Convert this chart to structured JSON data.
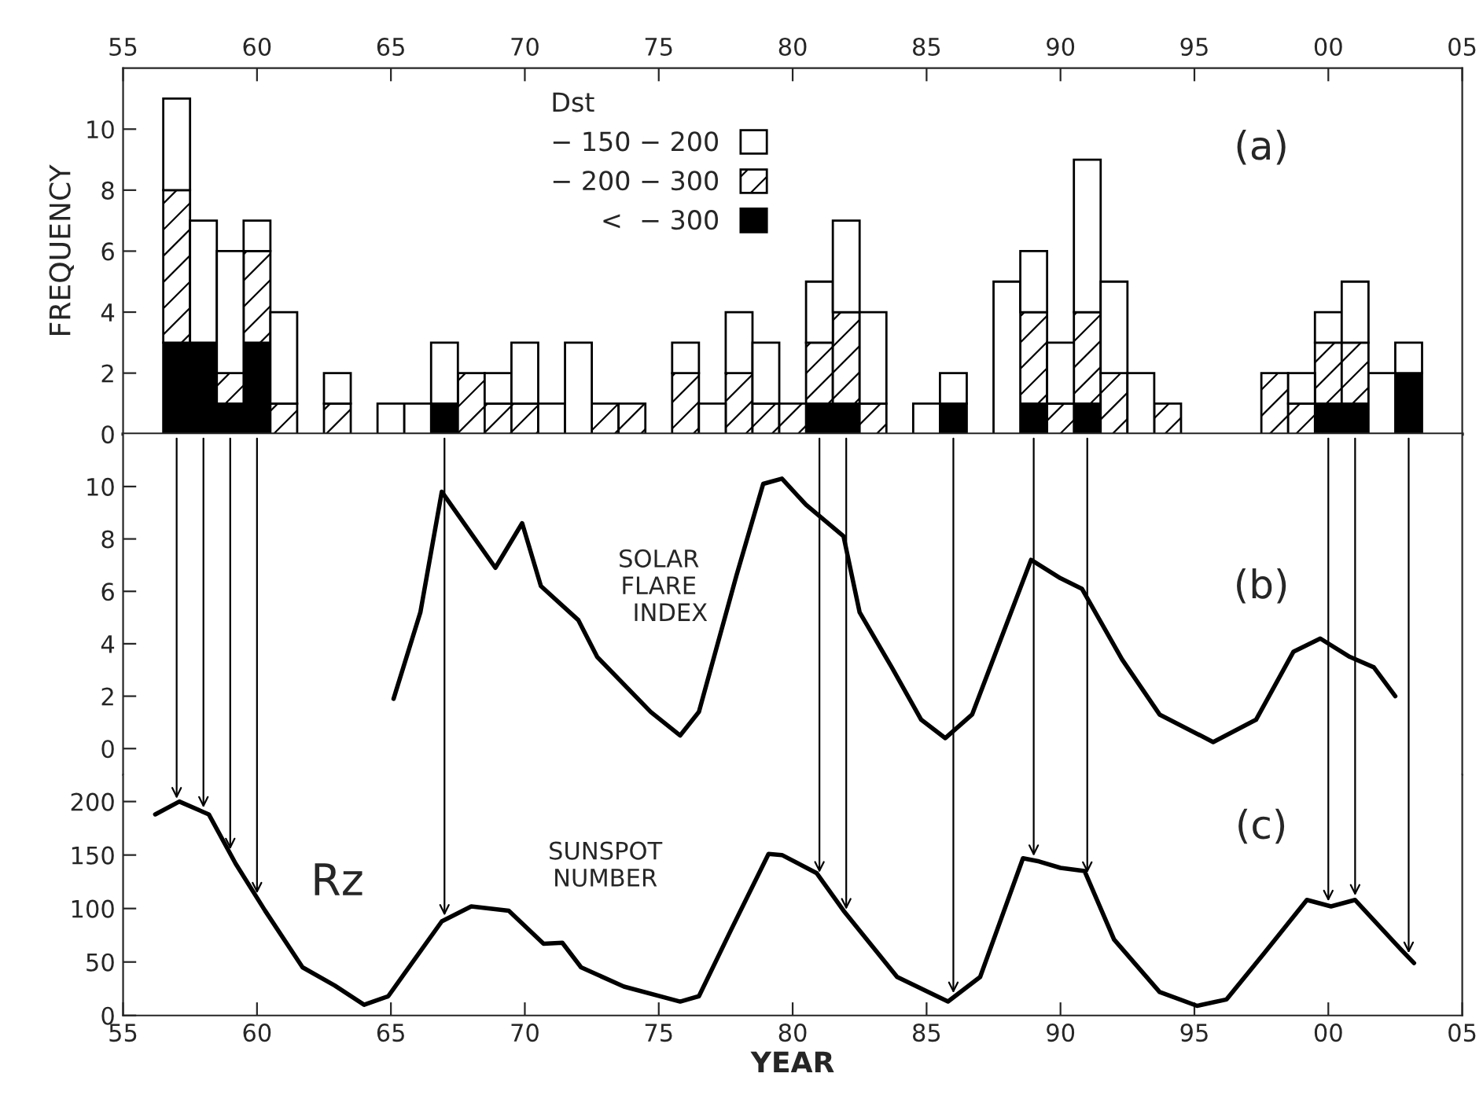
{
  "chart_data": [
    {
      "type": "bar",
      "stacked": true,
      "ylabel": "FREQUENCY",
      "legend_title": "Dst",
      "legend": "top",
      "x": [
        1957,
        1958,
        1959,
        1960,
        1961,
        1963,
        1965,
        1966,
        1967,
        1968,
        1969,
        1970,
        1971,
        1972,
        1973,
        1974,
        1976,
        1977,
        1978,
        1979,
        1980,
        1981,
        1982,
        1983,
        1985,
        1986,
        1988,
        1989,
        1990,
        1991,
        1992,
        1993,
        1994,
        1998,
        1999,
        2000,
        2001,
        2002,
        2003
      ],
      "series": [
        {
          "name": "<  − 300",
          "color": "#000000",
          "values": [
            3,
            3,
            1,
            3,
            0,
            0,
            0,
            0,
            1,
            0,
            0,
            0,
            0,
            0,
            0,
            0,
            0,
            0,
            0,
            0,
            0,
            1,
            1,
            0,
            0,
            1,
            0,
            1,
            0,
            1,
            0,
            0,
            0,
            0,
            0,
            1,
            1,
            0,
            2
          ]
        },
        {
          "name": "− 200 − 300",
          "color": "#000000",
          "values": [
            5,
            0,
            1,
            3,
            1,
            1,
            0,
            0,
            0,
            2,
            1,
            1,
            0,
            0,
            1,
            1,
            2,
            0,
            2,
            1,
            1,
            2,
            3,
            1,
            0,
            0,
            0,
            3,
            1,
            3,
            2,
            0,
            1,
            2,
            1,
            2,
            2,
            0,
            0
          ]
        },
        {
          "name": "− 150 − 200",
          "color": "#ffffff",
          "values": [
            3,
            4,
            4,
            1,
            3,
            1,
            1,
            1,
            2,
            0,
            1,
            2,
            1,
            3,
            0,
            0,
            1,
            1,
            2,
            2,
            0,
            2,
            3,
            3,
            1,
            1,
            5,
            2,
            2,
            5,
            3,
            2,
            0,
            0,
            1,
            1,
            2,
            2,
            1
          ]
        }
      ],
      "xlim": [
        1955,
        2005
      ],
      "xticks": [
        {
          "value": 1955,
          "label": "55"
        },
        {
          "value": 1960,
          "label": "60"
        },
        {
          "value": 1965,
          "label": "65"
        },
        {
          "value": 1970,
          "label": "70"
        },
        {
          "value": 1975,
          "label": "75"
        },
        {
          "value": 1980,
          "label": "80"
        },
        {
          "value": 1985,
          "label": "85"
        },
        {
          "value": 1990,
          "label": "90"
        },
        {
          "value": 1995,
          "label": "95"
        },
        {
          "value": 2000,
          "label": "00"
        },
        {
          "value": 2005,
          "label": "05"
        }
      ],
      "ylim": [
        0,
        12
      ],
      "yticks": [
        0,
        2,
        4,
        6,
        8,
        10
      ],
      "annotations": [
        "(a)"
      ]
    },
    {
      "type": "line",
      "tick_labels": "y",
      "series": [
        {
          "color": "#000000",
          "x": [
            1965.1,
            1966.1,
            1966.9,
            1968.9,
            1969.9,
            1970.6,
            1972.0,
            1972.7,
            1974.7,
            1975.8,
            1976.5,
            1977.9,
            1978.9,
            1979.6,
            1980.5,
            1981.9,
            1982.5,
            1983.7,
            1984.8,
            1985.7,
            1986.7,
            1988.9,
            1990.0,
            1990.8,
            1992.3,
            1993.7,
            1995.7,
            1997.3,
            1998.7,
            1999.7,
            2000.8,
            2001.7,
            2002.5
          ],
          "values": [
            1.9,
            5.2,
            9.8,
            6.9,
            8.6,
            6.2,
            4.9,
            3.5,
            1.4,
            0.5,
            1.4,
            6.6,
            10.1,
            10.3,
            9.3,
            8.1,
            5.2,
            3.1,
            1.1,
            0.4,
            1.3,
            7.2,
            6.5,
            6.1,
            3.4,
            1.3,
            0.25,
            1.1,
            3.7,
            4.2,
            3.5,
            3.1,
            2.0
          ]
        }
      ],
      "xlim": [
        1955,
        2005
      ],
      "ylim": [
        -1,
        12
      ],
      "yticks": [
        0,
        2,
        4,
        6,
        8,
        10
      ],
      "annotations": [
        "SOLAR\nFLARE\n   INDEX",
        "(b)"
      ]
    },
    {
      "type": "line",
      "xlabel": "YEAR",
      "series": [
        {
          "color": "#000000",
          "x": [
            1956.2,
            1957.1,
            1958.2,
            1959.2,
            1960.3,
            1961.7,
            1962.9,
            1964.0,
            1964.9,
            1966.9,
            1968.0,
            1969.4,
            1970.7,
            1971.4,
            1972.1,
            1973.7,
            1975.8,
            1976.5,
            1977.7,
            1979.1,
            1979.6,
            1980.9,
            1981.9,
            1983.9,
            1985.8,
            1987.0,
            1988.6,
            1989.2,
            1990.0,
            1990.9,
            1992.0,
            1993.7,
            1995.1,
            1996.2,
            1997.6,
            1999.2,
            2000.1,
            2001.0,
            2002.7,
            2003.2
          ],
          "values": [
            188,
            200,
            188,
            142,
            98,
            45,
            28,
            10,
            18,
            88,
            102,
            98,
            67,
            68,
            45,
            27,
            13,
            18,
            80,
            151,
            150,
            133,
            98,
            36,
            13,
            36,
            147,
            144,
            138,
            135,
            71,
            22,
            9,
            15,
            58,
            108,
            102,
            108,
            62,
            49
          ]
        }
      ],
      "xlim": [
        1955,
        2005
      ],
      "xticks": [
        {
          "value": 1955,
          "label": "55"
        },
        {
          "value": 1960,
          "label": "60"
        },
        {
          "value": 1965,
          "label": "65"
        },
        {
          "value": 1970,
          "label": "70"
        },
        {
          "value": 1975,
          "label": "75"
        },
        {
          "value": 1980,
          "label": "80"
        },
        {
          "value": 1985,
          "label": "85"
        },
        {
          "value": 1990,
          "label": "90"
        },
        {
          "value": 1995,
          "label": "95"
        },
        {
          "value": 2000,
          "label": "00"
        },
        {
          "value": 2005,
          "label": "05"
        }
      ],
      "ylim": [
        0,
        225
      ],
      "yticks": [
        0,
        50,
        100,
        150,
        200
      ],
      "annotations": [
        "Rz",
        "SUNSPOT\nNUMBER",
        "(c)"
      ]
    }
  ]
}
